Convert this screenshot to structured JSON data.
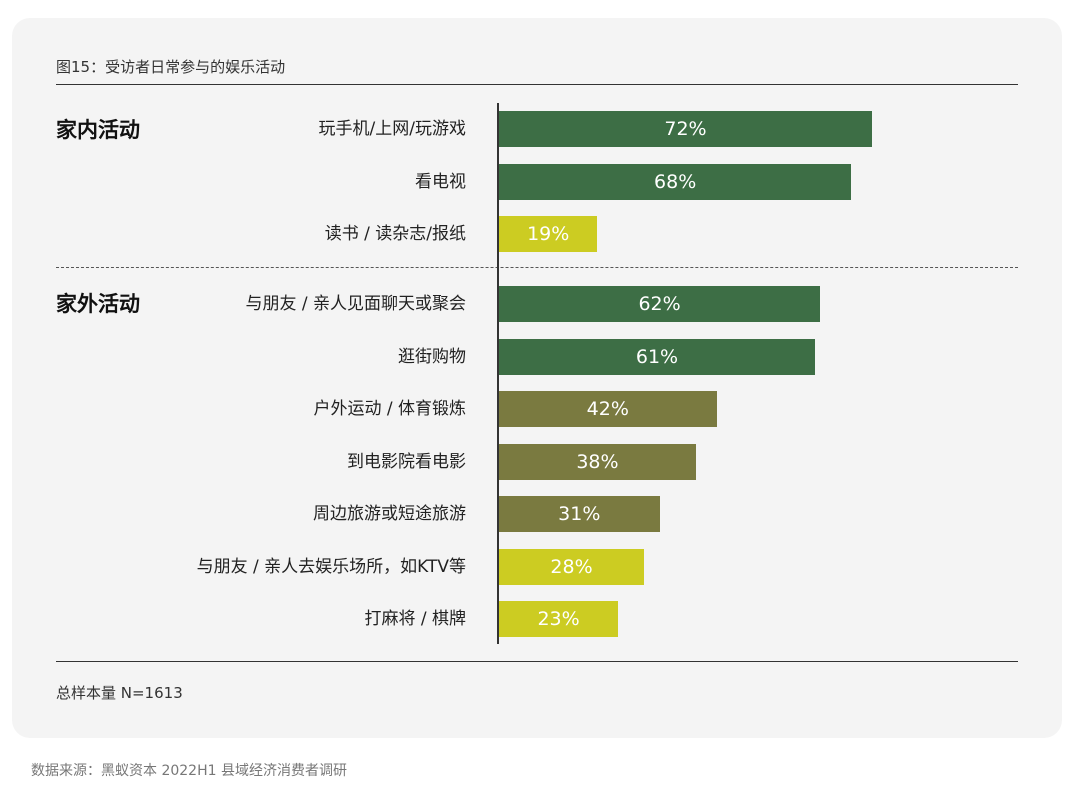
{
  "title": "图15：受访者日常参与的娱乐活动",
  "note": "总样本量 N=1613",
  "source": "数据来源：黑蚁资本 2022H1 县域经济消费者调研",
  "colors": {
    "dark_green": "#3d6e45",
    "olive": "#7a7a40",
    "lime": "#cccc22"
  },
  "chart_data": {
    "type": "bar",
    "orientation": "horizontal",
    "unit": "%",
    "xlim": [
      0,
      100
    ],
    "groups": [
      {
        "label": "家内活动",
        "items": [
          {
            "category": "玩手机/上网/玩游戏",
            "value": 72,
            "label": "72%",
            "color": "#3d6e45"
          },
          {
            "category": "看电视",
            "value": 68,
            "label": "68%",
            "color": "#3d6e45"
          },
          {
            "category": "读书 / 读杂志/报纸",
            "value": 19,
            "label": "19%",
            "color": "#cccc22"
          }
        ]
      },
      {
        "label": "家外活动",
        "items": [
          {
            "category": "与朋友 / 亲人见面聊天或聚会",
            "value": 62,
            "label": "62%",
            "color": "#3d6e45"
          },
          {
            "category": "逛街购物",
            "value": 61,
            "label": "61%",
            "color": "#3d6e45"
          },
          {
            "category": "户外运动 / 体育锻炼",
            "value": 42,
            "label": "42%",
            "color": "#7a7a40"
          },
          {
            "category": "到电影院看电影",
            "value": 38,
            "label": "38%",
            "color": "#7a7a40"
          },
          {
            "category": "周边旅游或短途旅游",
            "value": 31,
            "label": "31%",
            "color": "#7a7a40"
          },
          {
            "category": "与朋友 / 亲人去娱乐场所，如KTV等",
            "value": 28,
            "label": "28%",
            "color": "#cccc22"
          },
          {
            "category": "打麻将 / 棋牌",
            "value": 23,
            "label": "23%",
            "color": "#cccc22"
          }
        ]
      }
    ]
  }
}
